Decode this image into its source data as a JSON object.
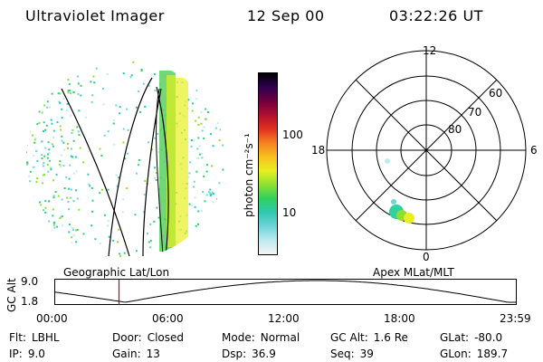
{
  "header": {
    "instrument": "Ultraviolet Imager",
    "date": "12 Sep 00",
    "time": "03:22:26 UT"
  },
  "left_panel": {
    "caption": "Geographic Lat/Lon"
  },
  "colorbar": {
    "unit_label": "photon cm⁻²s⁻¹",
    "ticks": [
      "100",
      "10"
    ],
    "scale": "log",
    "colors": [
      "#f5f5f5",
      "#bfeaf0",
      "#6fd4d8",
      "#2fc8b0",
      "#30d060",
      "#8de030",
      "#e8f020",
      "#f8c020",
      "#f58020",
      "#e03020",
      "#b01030",
      "#700040",
      "#300050",
      "#000000"
    ]
  },
  "polar_plot": {
    "caption": "Apex MLat/MLT",
    "mlt_labels": {
      "top": "12",
      "left": "18",
      "right": "6",
      "bottom": "0"
    },
    "lat_labels": [
      "60",
      "70",
      "80"
    ]
  },
  "altitude_strip": {
    "axis_label": "GC Alt",
    "ticks": [
      "9.0",
      "1.8"
    ],
    "time_labels": [
      "00:00",
      "06:00",
      "12:00",
      "18:00",
      "23:59"
    ],
    "marker_time": "03:22",
    "marker_color": "#cc0000"
  },
  "info": {
    "row1": [
      {
        "label": "Flt:",
        "value": "LBHL"
      },
      {
        "label": "Door:",
        "value": "Closed"
      },
      {
        "label": "Mode:",
        "value": "Normal"
      },
      {
        "label": "GC Alt:",
        "value": "1.6 Re"
      },
      {
        "label": "GLat:",
        "value": "-80.0"
      }
    ],
    "row2": [
      {
        "label": "IP:",
        "value": "9.0"
      },
      {
        "label": "Gain:",
        "value": "13"
      },
      {
        "label": "Dsp:",
        "value": "36.9"
      },
      {
        "label": "Seq:",
        "value": "39"
      },
      {
        "label": "GLon:",
        "value": "189.7"
      }
    ]
  }
}
